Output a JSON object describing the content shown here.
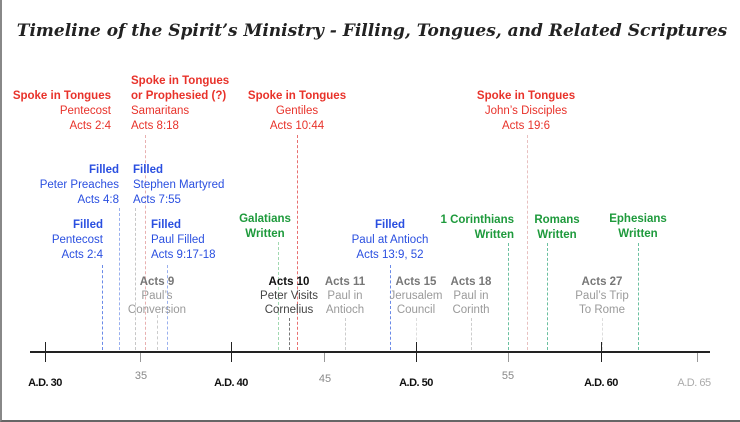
{
  "title": "Timeline of the Spirit’s Ministry - Filling, Tongues, and Related Scriptures",
  "colors": {
    "tongues": "#e8322a",
    "filled": "#2a4fe0",
    "written": "#1e9a3c",
    "event": "#9a9a9a"
  },
  "events": {
    "tongues_pentecost": {
      "heading": "Spoke in Tongues",
      "line1": "Pentecost",
      "line2": "Acts 2:4"
    },
    "tongues_samaritans": {
      "heading": "Spoke in Tongues",
      "heading2": "or Prophesied (?)",
      "line1": "Samaritans",
      "line2": "Acts 8:18"
    },
    "tongues_gentiles": {
      "heading": "Spoke in Tongues",
      "line1": "Gentiles",
      "line2": "Acts 10:44"
    },
    "tongues_johns": {
      "heading": "Spoke in Tongues",
      "line1": "John’s Disciples",
      "line2": "Acts 19:6"
    },
    "filled_peter": {
      "heading": "Filled",
      "line1": "Peter Preaches",
      "line2": "Acts 4:8"
    },
    "filled_stephen": {
      "heading": "Filled",
      "line1": "Stephen Martyred",
      "line2": "Acts 7:55"
    },
    "filled_pentecost": {
      "heading": "Filled",
      "line1": "Pentecost",
      "line2": "Acts 2:4"
    },
    "filled_paul": {
      "heading": "Filled",
      "line1": "Paul Filled",
      "line2": "Acts 9:17-18"
    },
    "filled_antioch": {
      "heading": "Filled",
      "line1": "Paul at Antioch",
      "line2": "Acts 13:9, 52"
    },
    "galatians": {
      "line1": "Galatians",
      "line2": "Written"
    },
    "corinthians": {
      "line1": "1 Corinthians",
      "line2": "Written"
    },
    "romans": {
      "line1": "Romans",
      "line2": "Written"
    },
    "ephesians": {
      "line1": "Ephesians",
      "line2": "Written"
    },
    "acts9": {
      "heading": "Acts 9",
      "line1": "Paul’s",
      "line2": "Conversion"
    },
    "acts10": {
      "heading": "Acts 10",
      "line1": "Peter Visits",
      "line2": "Cornelius"
    },
    "acts11": {
      "heading": "Acts 11",
      "line1": "Paul in",
      "line2": "Antioch"
    },
    "acts15": {
      "heading": "Acts 15",
      "line1": "Jerusalem",
      "line2": "Council"
    },
    "acts18": {
      "heading": "Acts 18",
      "line1": "Paul in",
      "line2": "Corinth"
    },
    "acts27": {
      "heading": "Acts 27",
      "line1": "Paul’s Trip",
      "line2": "To Rome"
    }
  },
  "axis": {
    "major": [
      "A.D. 30",
      "A.D. 40",
      "A.D. 50",
      "A.D. 60",
      "A.D. 65"
    ],
    "minor": [
      "35",
      "45",
      "55"
    ]
  }
}
